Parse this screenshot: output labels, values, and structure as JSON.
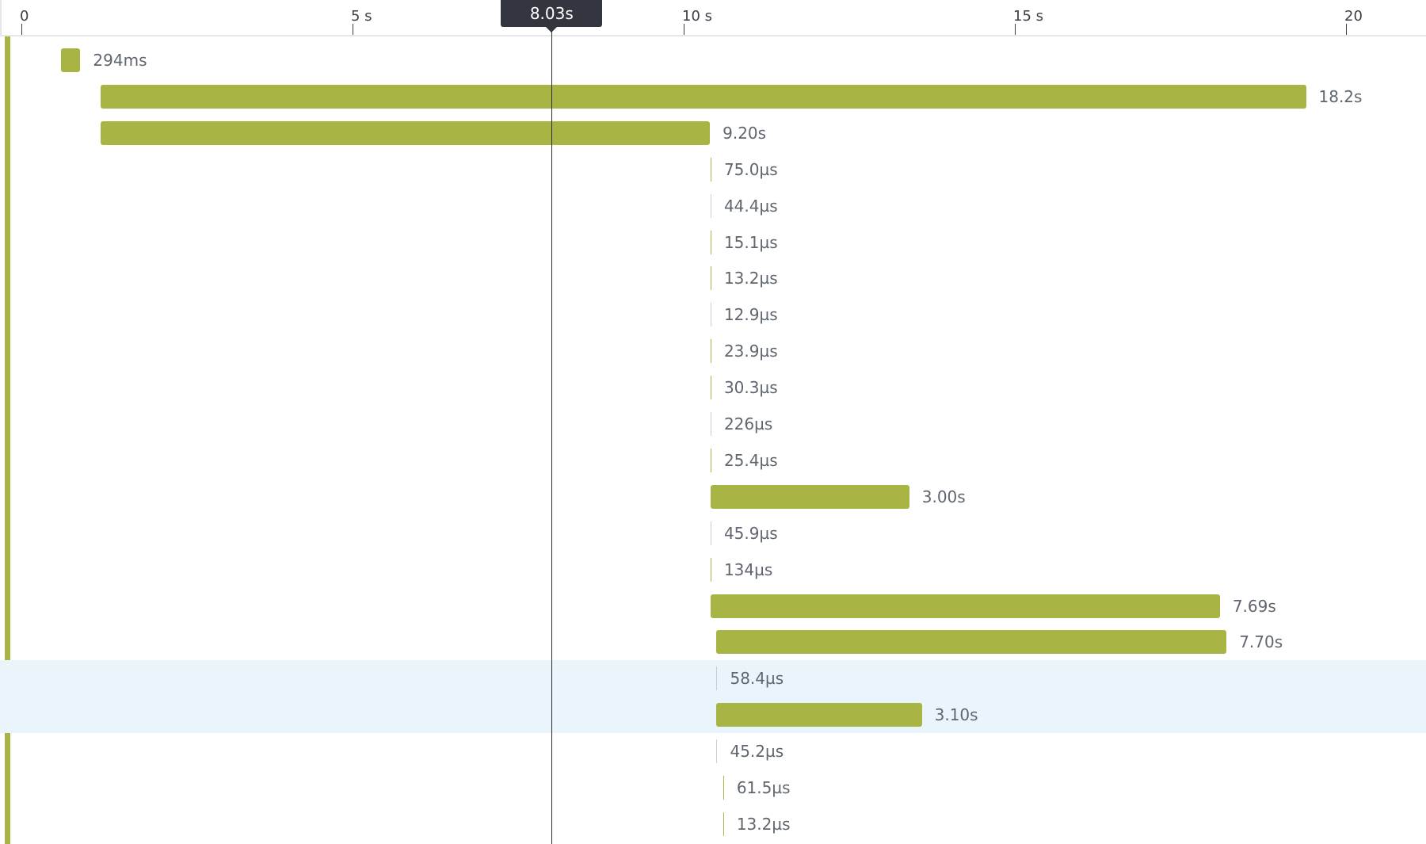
{
  "chart_data": {
    "type": "bar",
    "subtype": "waterfall-timeline",
    "x_axis": {
      "unit": "s",
      "range": [
        0,
        20.6
      ],
      "ticks": [
        {
          "value": 0,
          "label": "0"
        },
        {
          "value": 5,
          "label": "5 s"
        },
        {
          "value": 10,
          "label": "10 s"
        },
        {
          "value": 15,
          "label": "15 s"
        },
        {
          "value": 20,
          "label": "20"
        }
      ]
    },
    "cursor": {
      "value": 8.03,
      "label": "8.03s"
    },
    "colors": {
      "bar": "#a8b444",
      "highlight": "#eaf5fb",
      "cursor": "#33363f",
      "thin_grey": "#c9ccd1"
    },
    "spans": [
      {
        "start": 0.62,
        "duration": 0.294,
        "label": "294ms"
      },
      {
        "start": 1.22,
        "duration": 18.2,
        "label": "18.2s"
      },
      {
        "start": 1.22,
        "duration": 9.2,
        "label": "9.20s"
      },
      {
        "start": 10.43,
        "duration": 0,
        "label": "75.0µs"
      },
      {
        "start": 10.43,
        "duration": 0,
        "label": "44.4µs"
      },
      {
        "start": 10.43,
        "duration": 0,
        "label": "15.1µs"
      },
      {
        "start": 10.43,
        "duration": 0,
        "label": "13.2µs"
      },
      {
        "start": 10.43,
        "duration": 0,
        "label": "12.9µs"
      },
      {
        "start": 10.43,
        "duration": 0,
        "label": "23.9µs"
      },
      {
        "start": 10.43,
        "duration": 0,
        "label": "30.3µs"
      },
      {
        "start": 10.43,
        "duration": 0,
        "label": "226µs"
      },
      {
        "start": 10.43,
        "duration": 0,
        "label": "25.4µs"
      },
      {
        "start": 10.43,
        "duration": 3.0,
        "label": "3.00s"
      },
      {
        "start": 10.43,
        "duration": 0,
        "label": "45.9µs"
      },
      {
        "start": 10.43,
        "duration": 0,
        "label": "134µs"
      },
      {
        "start": 10.43,
        "duration": 7.69,
        "label": "7.69s"
      },
      {
        "start": 10.52,
        "duration": 7.7,
        "label": "7.70s"
      },
      {
        "start": 10.52,
        "duration": 0,
        "label": "58.4µs",
        "highlighted": true
      },
      {
        "start": 10.52,
        "duration": 3.1,
        "label": "3.10s",
        "highlighted": true
      },
      {
        "start": 10.52,
        "duration": 0,
        "label": "45.2µs"
      },
      {
        "start": 10.62,
        "duration": 0,
        "label": "61.5µs"
      },
      {
        "start": 10.62,
        "duration": 0,
        "label": "13.2µs"
      }
    ]
  }
}
